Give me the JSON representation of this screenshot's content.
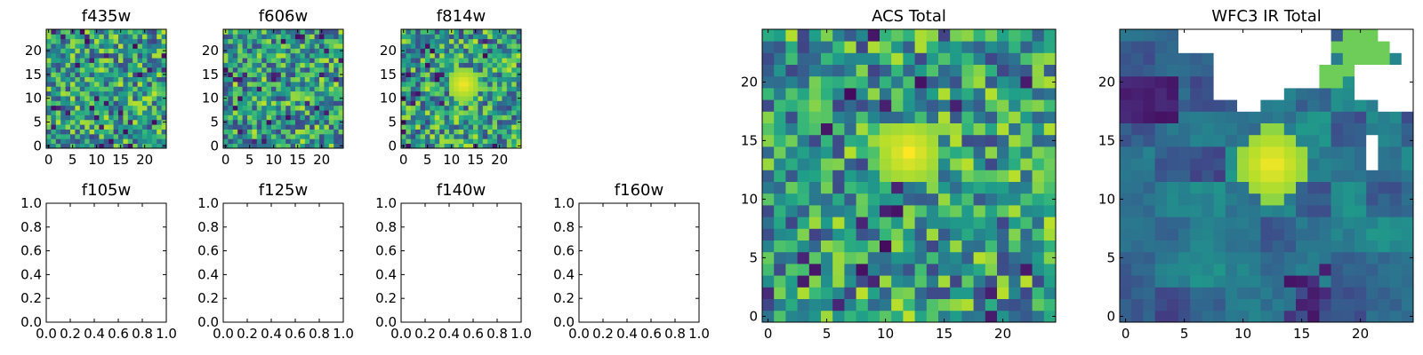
{
  "colors": {
    "frame": "#000000",
    "nan": "#ffffff",
    "colormap": "viridis"
  },
  "chart_data": [
    {
      "type": "heatmap",
      "title": "f435w",
      "grid_size": 25,
      "xticks": [
        "0",
        "5",
        "10",
        "15",
        "20"
      ],
      "yticks": [
        "0",
        "5",
        "10",
        "15",
        "20"
      ],
      "xlim": [
        -0.5,
        24.5
      ],
      "ylim": [
        -0.5,
        24.5
      ],
      "field": "noise",
      "seed": 11,
      "hotspot": null
    },
    {
      "type": "heatmap",
      "title": "f606w",
      "grid_size": 25,
      "xticks": [
        "0",
        "5",
        "10",
        "15",
        "20"
      ],
      "yticks": [
        "0",
        "5",
        "10",
        "15",
        "20"
      ],
      "xlim": [
        -0.5,
        24.5
      ],
      "ylim": [
        -0.5,
        24.5
      ],
      "field": "noise",
      "seed": 23,
      "hotspot": null
    },
    {
      "type": "heatmap",
      "title": "f814w",
      "grid_size": 25,
      "xticks": [
        "0",
        "5",
        "10",
        "15",
        "20"
      ],
      "yticks": [
        "0",
        "5",
        "10",
        "15",
        "20"
      ],
      "xlim": [
        -0.5,
        24.5
      ],
      "ylim": [
        -0.5,
        24.5
      ],
      "field": "noise",
      "seed": 37,
      "hotspot": {
        "x": 12.5,
        "y": 13,
        "r": 3.5
      }
    },
    {
      "type": "empty",
      "title": "f105w",
      "xticks": [
        "0.0",
        "0.2",
        "0.4",
        "0.6",
        "0.8",
        "1.0"
      ],
      "yticks": [
        "0.0",
        "0.2",
        "0.4",
        "0.6",
        "0.8",
        "1.0"
      ],
      "xlim": [
        0,
        1
      ],
      "ylim": [
        0,
        1
      ]
    },
    {
      "type": "empty",
      "title": "f125w",
      "xticks": [
        "0.0",
        "0.2",
        "0.4",
        "0.6",
        "0.8",
        "1.0"
      ],
      "yticks": [
        "0.0",
        "0.2",
        "0.4",
        "0.6",
        "0.8",
        "1.0"
      ],
      "xlim": [
        0,
        1
      ],
      "ylim": [
        0,
        1
      ]
    },
    {
      "type": "empty",
      "title": "f140w",
      "xticks": [
        "0.0",
        "0.2",
        "0.4",
        "0.6",
        "0.8",
        "1.0"
      ],
      "yticks": [
        "0.0",
        "0.2",
        "0.4",
        "0.6",
        "0.8",
        "1.0"
      ],
      "xlim": [
        0,
        1
      ],
      "ylim": [
        0,
        1
      ]
    },
    {
      "type": "empty",
      "title": "f160w",
      "xticks": [
        "0.0",
        "0.2",
        "0.4",
        "0.6",
        "0.8",
        "1.0"
      ],
      "yticks": [
        "0.0",
        "0.2",
        "0.4",
        "0.6",
        "0.8",
        "1.0"
      ],
      "xlim": [
        0,
        1
      ],
      "ylim": [
        0,
        1
      ]
    },
    {
      "type": "heatmap",
      "title": "ACS Total",
      "grid_size": 25,
      "xticks": [
        "0",
        "5",
        "10",
        "15",
        "20"
      ],
      "yticks": [
        "0",
        "5",
        "10",
        "15",
        "20"
      ],
      "xlim": [
        -0.5,
        24.5
      ],
      "ylim": [
        -0.5,
        24.5
      ],
      "field": "noise",
      "seed": 51,
      "hotspot": {
        "x": 12,
        "y": 14,
        "r": 3
      }
    },
    {
      "type": "heatmap",
      "title": "WFC3 IR Total",
      "grid_size": 25,
      "xticks": [
        "0",
        "5",
        "10",
        "15",
        "20"
      ],
      "yticks": [
        "0",
        "5",
        "10",
        "15",
        "20"
      ],
      "xlim": [
        -0.5,
        24.5
      ],
      "ylim": [
        -0.5,
        24.5
      ],
      "field": "blocky",
      "seed": 77,
      "hotspot": {
        "x": 12.5,
        "y": 13,
        "r": 3.2
      },
      "nan_cells": [
        [
          5,
          24
        ],
        [
          6,
          24
        ],
        [
          7,
          24
        ],
        [
          8,
          24
        ],
        [
          9,
          24
        ],
        [
          10,
          24
        ],
        [
          11,
          24
        ],
        [
          12,
          24
        ],
        [
          13,
          24
        ],
        [
          14,
          24
        ],
        [
          15,
          24
        ],
        [
          16,
          24
        ],
        [
          17,
          24
        ],
        [
          5,
          23
        ],
        [
          6,
          23
        ],
        [
          7,
          23
        ],
        [
          8,
          23
        ],
        [
          9,
          23
        ],
        [
          10,
          23
        ],
        [
          11,
          23
        ],
        [
          12,
          23
        ],
        [
          13,
          23
        ],
        [
          14,
          23
        ],
        [
          15,
          23
        ],
        [
          16,
          23
        ],
        [
          17,
          23
        ],
        [
          22,
          24
        ],
        [
          23,
          24
        ],
        [
          24,
          24
        ],
        [
          23,
          23
        ],
        [
          24,
          23
        ],
        [
          24,
          22
        ],
        [
          8,
          22
        ],
        [
          9,
          22
        ],
        [
          10,
          22
        ],
        [
          11,
          22
        ],
        [
          12,
          22
        ],
        [
          13,
          22
        ],
        [
          14,
          22
        ],
        [
          15,
          22
        ],
        [
          16,
          22
        ],
        [
          17,
          22
        ],
        [
          8,
          21
        ],
        [
          9,
          21
        ],
        [
          10,
          21
        ],
        [
          11,
          21
        ],
        [
          12,
          21
        ],
        [
          13,
          21
        ],
        [
          14,
          21
        ],
        [
          15,
          21
        ],
        [
          16,
          21
        ],
        [
          8,
          20
        ],
        [
          9,
          20
        ],
        [
          10,
          20
        ],
        [
          11,
          20
        ],
        [
          12,
          20
        ],
        [
          13,
          20
        ],
        [
          14,
          20
        ],
        [
          15,
          20
        ],
        [
          16,
          20
        ],
        [
          20,
          21
        ],
        [
          21,
          21
        ],
        [
          22,
          21
        ],
        [
          23,
          21
        ],
        [
          24,
          21
        ],
        [
          20,
          20
        ],
        [
          21,
          20
        ],
        [
          22,
          20
        ],
        [
          23,
          20
        ],
        [
          24,
          20
        ],
        [
          20,
          19
        ],
        [
          21,
          19
        ],
        [
          22,
          19
        ],
        [
          23,
          19
        ],
        [
          24,
          19
        ],
        [
          22,
          18
        ],
        [
          23,
          18
        ],
        [
          24,
          18
        ],
        [
          8,
          19
        ],
        [
          9,
          19
        ],
        [
          10,
          19
        ],
        [
          11,
          19
        ],
        [
          12,
          19
        ],
        [
          13,
          19
        ],
        [
          10,
          18
        ],
        [
          11,
          18
        ],
        [
          21,
          15
        ],
        [
          21,
          14
        ],
        [
          21,
          13
        ]
      ],
      "green_cells": [
        [
          19,
          24
        ],
        [
          20,
          24
        ],
        [
          21,
          24
        ],
        [
          18,
          23
        ],
        [
          19,
          23
        ],
        [
          20,
          23
        ],
        [
          21,
          23
        ],
        [
          22,
          23
        ],
        [
          19,
          22
        ],
        [
          20,
          22
        ],
        [
          21,
          22
        ],
        [
          22,
          22
        ],
        [
          17,
          21
        ],
        [
          18,
          21
        ],
        [
          19,
          21
        ],
        [
          16,
          20
        ],
        [
          17,
          20
        ],
        [
          18,
          20
        ]
      ]
    }
  ]
}
